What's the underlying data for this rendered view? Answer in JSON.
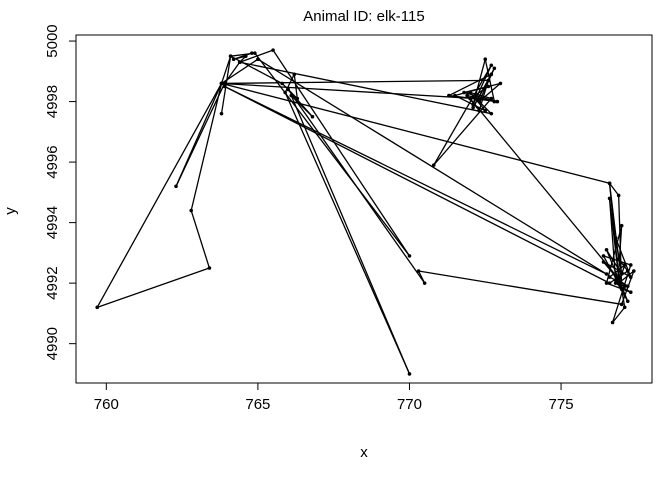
{
  "chart_data": {
    "type": "line",
    "title": "Animal ID: elk-115",
    "xlabel": "x",
    "ylabel": "y",
    "xlim": [
      759.0,
      778.0
    ],
    "ylim": [
      4988.7,
      5000.2
    ],
    "x_ticks": [
      760,
      765,
      770,
      775
    ],
    "y_ticks": [
      4990,
      4992,
      4994,
      4996,
      4998,
      5000
    ],
    "grid": false,
    "series": [
      {
        "points": [
          [
            764.8,
            4999.6
          ],
          [
            764.2,
            4999.4
          ],
          [
            764.6,
            4999.5
          ],
          [
            764.4,
            4999.3
          ],
          [
            763.9,
            4998.6
          ],
          [
            762.3,
            4995.2
          ],
          [
            763.8,
            4998.6
          ],
          [
            759.7,
            4991.2
          ],
          [
            763.4,
            4992.5
          ],
          [
            762.8,
            4994.4
          ],
          [
            763.8,
            4998.6
          ],
          [
            764.1,
            4999.5
          ],
          [
            765.8,
            4998.6
          ],
          [
            766.3,
            4998.1
          ],
          [
            766.2,
            4998.9
          ],
          [
            765.9,
            4998.3
          ],
          [
            770.0,
            4989.0
          ],
          [
            766.1,
            4998.2
          ],
          [
            766.8,
            4997.5
          ],
          [
            766.0,
            4998.4
          ],
          [
            770.5,
            4992.0
          ],
          [
            770.3,
            4992.4
          ],
          [
            777.0,
            4991.3
          ],
          [
            777.4,
            4992.4
          ],
          [
            776.9,
            4992.0
          ],
          [
            777.1,
            4992.6
          ],
          [
            776.6,
            4992.2
          ],
          [
            777.2,
            4991.9
          ],
          [
            776.9,
            4992.1
          ],
          [
            776.4,
            4992.7
          ],
          [
            777.3,
            4992.2
          ],
          [
            776.8,
            4993.5
          ],
          [
            777.0,
            4992.3
          ],
          [
            776.5,
            4993.1
          ],
          [
            777.2,
            4991.4
          ],
          [
            776.8,
            4992.1
          ],
          [
            776.6,
            4994.8
          ],
          [
            776.9,
            4992.2
          ],
          [
            776.6,
            4995.3
          ],
          [
            763.8,
            4998.6
          ],
          [
            765.0,
            4999.4
          ],
          [
            776.5,
            4992.3
          ],
          [
            763.9,
            4998.5
          ],
          [
            776.6,
            4992.0
          ],
          [
            777.2,
            4992.4
          ],
          [
            776.9,
            4992.8
          ],
          [
            776.6,
            4995.3
          ],
          [
            776.9,
            4994.9
          ],
          [
            777.0,
            4991.8
          ],
          [
            776.4,
            4992.9
          ],
          [
            777.3,
            4992.6
          ],
          [
            776.7,
            4990.7
          ],
          [
            777.1,
            4991.2
          ],
          [
            776.9,
            4992.4
          ],
          [
            777.0,
            4993.9
          ],
          [
            776.5,
            4992.0
          ],
          [
            777.3,
            4991.7
          ],
          [
            776.8,
            4992.0
          ],
          [
            777.1,
            4991.9
          ],
          [
            772.0,
            4998.1
          ],
          [
            772.6,
            4998.5
          ],
          [
            771.8,
            4998.3
          ],
          [
            772.9,
            4998.0
          ],
          [
            771.3,
            4998.2
          ],
          [
            772.7,
            4998.9
          ],
          [
            772.1,
            4997.8
          ],
          [
            772.8,
            4999.1
          ],
          [
            772.3,
            4998.0
          ],
          [
            773.0,
            4998.6
          ],
          [
            771.5,
            4998.2
          ],
          [
            772.5,
            4997.7
          ],
          [
            772.0,
            4998.3
          ],
          [
            772.7,
            4998.1
          ],
          [
            770.8,
            4995.9
          ],
          [
            772.7,
            4999.2
          ],
          [
            772.1,
            4997.9
          ],
          [
            772.5,
            4999.4
          ],
          [
            772.8,
            4998.0
          ],
          [
            771.9,
            4998.2
          ],
          [
            772.3,
            4997.7
          ],
          [
            772.6,
            4998.7
          ],
          [
            763.8,
            4998.6
          ],
          [
            772.2,
            4998.1
          ],
          [
            772.7,
            4997.6
          ],
          [
            764.4,
            4999.3
          ],
          [
            765.5,
            4999.7
          ],
          [
            770.0,
            4992.9
          ],
          [
            764.9,
            4999.6
          ],
          [
            764.1,
            4999.5
          ],
          [
            763.8,
            4997.6
          ]
        ]
      }
    ]
  }
}
